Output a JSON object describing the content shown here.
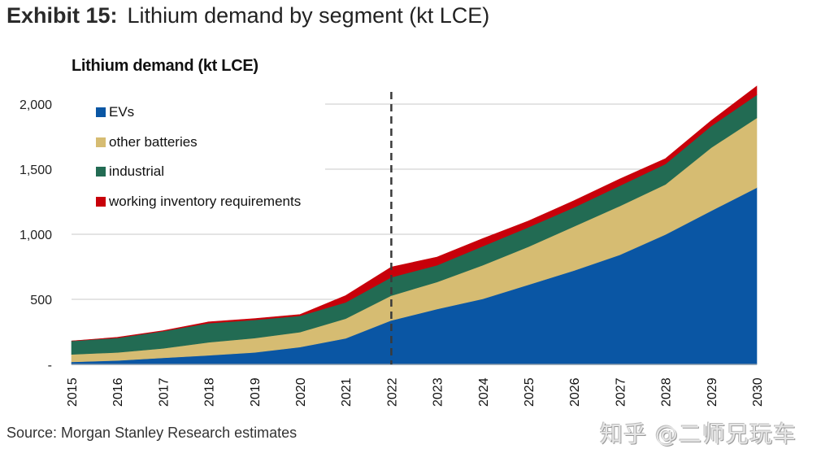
{
  "exhibit": {
    "label": "Exhibit 15:",
    "title": "Lithium demand by segment (kt LCE)"
  },
  "source": "Source: Morgan Stanley Research estimates",
  "watermark": "知乎 @二师兄玩车",
  "chart_data": {
    "type": "area",
    "stacked": true,
    "title": "Lithium demand (kt LCE)",
    "xlabel": "",
    "ylabel": "",
    "x": [
      "2015",
      "2016",
      "2017",
      "2018",
      "2019",
      "2020",
      "2021",
      "2022",
      "2023",
      "2024",
      "2025",
      "2026",
      "2027",
      "2028",
      "2029",
      "2030"
    ],
    "ylim": [
      0,
      2150
    ],
    "yticks": [
      0,
      500,
      1000,
      1500,
      2000
    ],
    "ytick_labels": [
      "-",
      "500",
      "1,000",
      "1,500",
      "2,000"
    ],
    "grid": "horizontal",
    "legend_position": "top-left",
    "annotations": [
      {
        "type": "vertical-dashed-line",
        "x": "2022"
      }
    ],
    "series": [
      {
        "name": "EVs",
        "color": "#0a56a4",
        "values": [
          19,
          30,
          50,
          70,
          92,
          133,
          200,
          338,
          425,
          504,
          612,
          721,
          842,
          998,
          1180,
          1358
        ]
      },
      {
        "name": "other batteries",
        "color": "#d6bc72",
        "values": [
          58,
          62,
          73,
          100,
          110,
          115,
          152,
          191,
          208,
          258,
          292,
          339,
          375,
          385,
          485,
          536
        ]
      },
      {
        "name": "industrial",
        "color": "#226b53",
        "values": [
          103,
          112,
          132,
          147,
          140,
          125,
          125,
          141,
          129,
          146,
          150,
          146,
          156,
          157,
          166,
          177
        ]
      },
      {
        "name": "working inventory requirements",
        "color": "#c8000a",
        "values": [
          0,
          4,
          4,
          10,
          10,
          10,
          52,
          78,
          63,
          59,
          48,
          52,
          52,
          41,
          42,
          67
        ]
      }
    ]
  }
}
